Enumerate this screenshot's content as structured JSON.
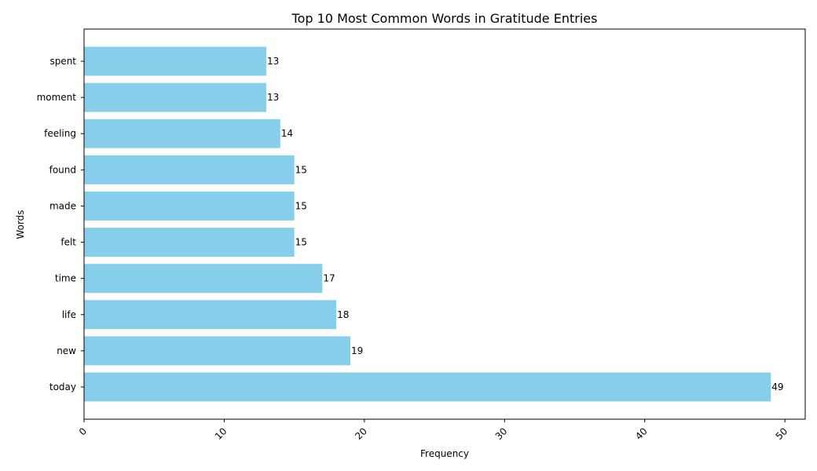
{
  "chart_data": {
    "type": "bar",
    "orientation": "horizontal",
    "title": "Top 10 Most Common Words in Gratitude Entries",
    "xlabel": "Frequency",
    "ylabel": "Words",
    "categories": [
      "today",
      "new",
      "life",
      "time",
      "felt",
      "made",
      "found",
      "feeling",
      "moment",
      "spent"
    ],
    "values": [
      49,
      19,
      18,
      17,
      15,
      15,
      15,
      14,
      13,
      13
    ],
    "xlim": [
      0,
      51.45
    ],
    "xticks": [
      0,
      10,
      20,
      30,
      40,
      50
    ],
    "x_tick_rotation": 45,
    "grid": false,
    "bar_color": "#87ceeb",
    "data_labels": true
  }
}
